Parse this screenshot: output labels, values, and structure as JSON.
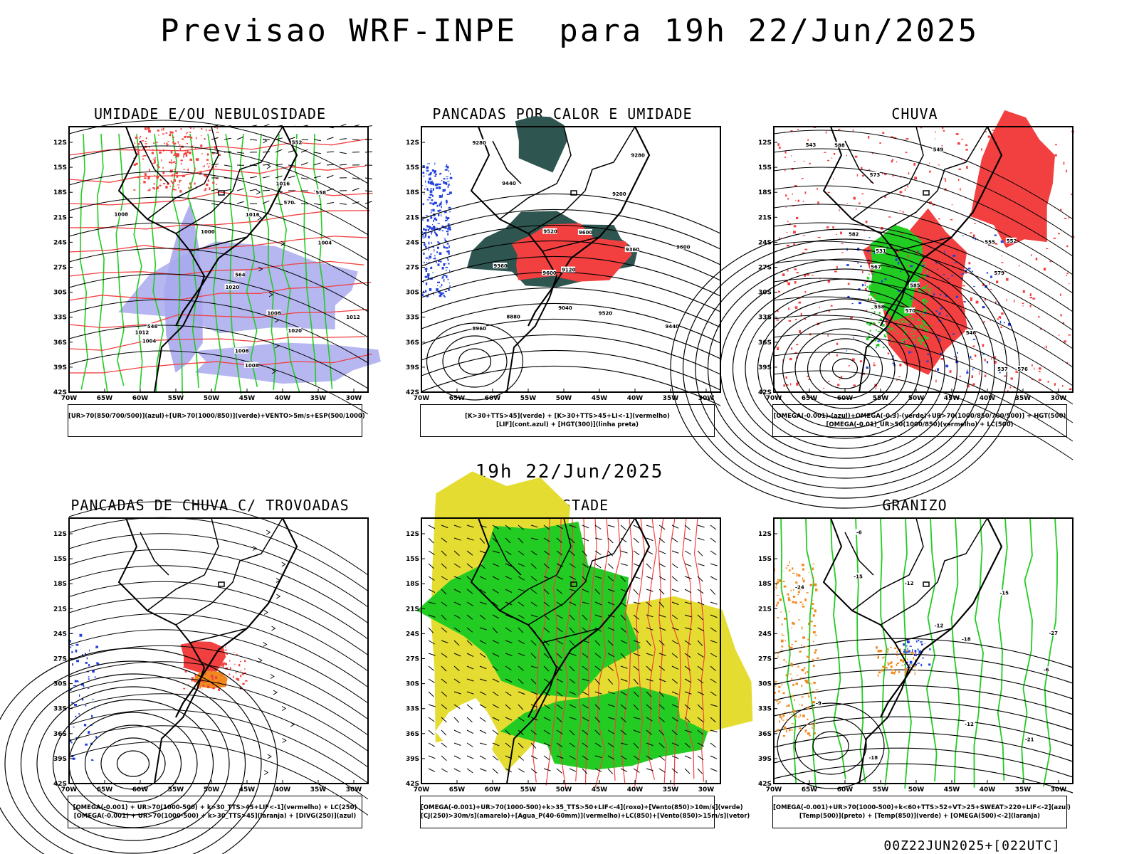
{
  "header": {
    "title": "Previsao WRF-INPE  para 19h 22/Jun/2025"
  },
  "subtitle": "19h 22/Jun/2025",
  "footer": "00Z22JUN2025+[022UTC]",
  "axes": {
    "lat_labels": [
      "12S",
      "15S",
      "18S",
      "21S",
      "24S",
      "27S",
      "30S",
      "33S",
      "36S",
      "39S",
      "42S"
    ],
    "lon_labels": [
      "70W",
      "65W",
      "60W",
      "55W",
      "50W",
      "45W",
      "40W",
      "35W",
      "30W"
    ]
  },
  "colors": {
    "humidity_blue": "#a9a9ee",
    "red": "#f24040",
    "green": "#22cc22",
    "dark_teal": "#2e5550",
    "blue": "#2040e0",
    "yellow": "#e4dc30",
    "orange": "#f08a20"
  },
  "panels": [
    {
      "title": "UMIDADE E/OU NEBULOSIDADE",
      "legend": [
        "[UR>70(850/700/500)](azul)+[UR>70(1000/850)](verde)+VENTO>5m/s+ESP(500/1000)"
      ],
      "labels": [
        "1008",
        "1008",
        "1012",
        "1016",
        "1016",
        "1004",
        "1020",
        "1012",
        "1004",
        "1000",
        "1008",
        "1008",
        "1020",
        "570",
        "564",
        "558",
        "552",
        "546"
      ]
    },
    {
      "title": "PANCADAS POR CALOR E UMIDADE",
      "legend": [
        "[K>30+TTS>45](verde) + [K>30+TTS>45+LI<-1](vermelho)",
        "[LIF](cont.azul) + [HGT(300)](linha preta)"
      ],
      "labels": [
        "9600",
        "9600",
        "9600",
        "9520",
        "9520",
        "9440",
        "9440",
        "9360",
        "9280",
        "9280",
        "9200",
        "9120",
        "9040",
        "8960",
        "8880",
        "9360"
      ]
    },
    {
      "title": "CHUVA",
      "legend": [
        "[OMEGA(-0.001)-(azul)+OMEGA(-0.3)-(verde)+UR>70(1000/850/700/500)] + HGT(500)",
        "[OMEGA(-0.01)_UR>50(1000/850)(vermelho) + LC(500)"
      ],
      "labels": [
        "585",
        "582",
        "588",
        "579",
        "576",
        "573",
        "570",
        "567",
        "558",
        "555",
        "552",
        "549",
        "543",
        "537",
        "531",
        "546"
      ]
    },
    {
      "title": "PANCADAS DE CHUVA C/ TROVOADAS",
      "legend": [
        "[OMEGA(-0.001) + UR>70(1000-500) + k>30_TTS>45+LIF<-1](vermelho) + LC(250)",
        "[OMEGA(-0.001) + UR>70(1000-500) + k>30_TTS>45](laranja) + [DIVG(250)](azul)"
      ],
      "labels": []
    },
    {
      "title": "TEMPESTADE",
      "legend": [
        "[OMEGA(-0.001)+UR>70(1000-500)+k>35_TTS>50+LIF<-4](roxo)+[Vento(850)>10m/s](verde)",
        "[CJ(250)>30m/s](amarelo)+[Agua_P(40-60mm)](vermelho)+LC(850)+[Vento(850)>15m/s](vetor)"
      ],
      "labels": []
    },
    {
      "title": "GRANIZO",
      "legend": [
        "[OMEGA(-0.001)+UR>70(1000-500)+k<60+TTS>52+VT>25+SWEAT>220+LIF<-2](azul)",
        "[Temp(500)](preto) + [Temp(850)](verde) + [OMEGA(500)<-2](laranja)"
      ],
      "labels": [
        "-6",
        "-12",
        "-15",
        "-12",
        "-15",
        "-18",
        "-12",
        "-21",
        "-27",
        "-18",
        "-24",
        "-6",
        "-9"
      ]
    }
  ]
}
